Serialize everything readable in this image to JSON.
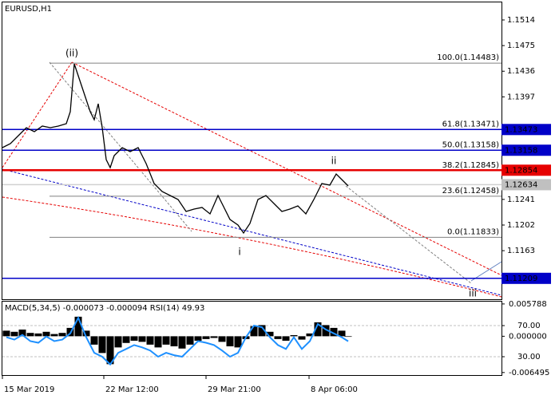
{
  "chart_data": [
    {
      "type": "line",
      "title": "EURUSD,H1",
      "color": "#000000",
      "x": [
        0,
        10,
        20,
        30,
        40,
        50,
        60,
        70,
        80,
        85,
        90,
        95,
        100,
        105,
        110,
        115,
        120,
        125,
        130,
        135,
        140,
        150,
        160,
        170,
        175,
        180,
        190,
        200,
        210,
        220,
        230,
        240,
        250,
        260,
        270,
        275,
        285,
        295,
        302,
        310,
        320,
        330,
        340,
        350,
        360,
        370,
        380,
        390,
        400,
        410,
        418,
        425,
        433
      ],
      "values": [
        1.13198,
        1.13258,
        1.1338,
        1.13501,
        1.1344,
        1.13525,
        1.13501,
        1.13525,
        1.13562,
        1.13744,
        1.14472,
        1.1429,
        1.14108,
        1.13926,
        1.13744,
        1.13623,
        1.13865,
        1.13501,
        1.13016,
        1.12894,
        1.13076,
        1.13198,
        1.13137,
        1.13198,
        1.13076,
        1.12955,
        1.12651,
        1.1253,
        1.12469,
        1.12409,
        1.12226,
        1.12263,
        1.12287,
        1.1219,
        1.12469,
        1.12348,
        1.12105,
        1.1202,
        1.11899,
        1.12044,
        1.12409,
        1.12469,
        1.12348,
        1.12226,
        1.12263,
        1.12311,
        1.1219,
        1.12409,
        1.12651,
        1.12627,
        1.12797,
        1.12712,
        1.12615
      ],
      "xlim": [
        0,
        625
      ],
      "xticks": [
        {
          "value": 0,
          "label": "15 Mar 2019"
        },
        {
          "value": 127,
          "label": "22 Mar 12:00"
        },
        {
          "value": 255,
          "label": "29 Mar 21:00"
        },
        {
          "value": 384,
          "label": "8 Apr 06:00"
        }
      ],
      "ylim": [
        1.10891,
        1.15407
      ],
      "yticks": [
        1.1514,
        1.1475,
        1.1436,
        1.1397,
        1.1241,
        1.1202,
        1.1163
      ],
      "levels": [
        1.13473,
        1.13158,
        1.12854,
        1.12634,
        1.11209
      ],
      "level_colors": [
        "#0000c8",
        "#0000c8",
        "#e60000",
        "#c0c0c0",
        "#0000c8"
      ],
      "fibo": [
        {
          "label": "100.0(1.14483)",
          "value": 1.14483
        },
        {
          "label": "61.8(1.13471)",
          "value": 1.13471
        },
        {
          "label": "50.0(1.13158)",
          "value": 1.13158
        },
        {
          "label": "38.2(1.12845)",
          "value": 1.12845
        },
        {
          "label": "23.6(1.12458)",
          "value": 1.12458
        },
        {
          "label": "0.0(1.11833)",
          "value": 1.11833
        }
      ],
      "annotations": [
        "(ii)",
        "ii",
        "i",
        "iii"
      ]
    },
    {
      "type": "bar",
      "title": "MACD(5,34,5) -0.000073 -0.000094 RSI(14) 49.93",
      "color": "#000000",
      "x": [
        5,
        15,
        25,
        35,
        45,
        55,
        65,
        75,
        85,
        95,
        105,
        115,
        125,
        135,
        145,
        155,
        165,
        175,
        185,
        195,
        205,
        215,
        225,
        235,
        245,
        255,
        265,
        275,
        285,
        295,
        305,
        315,
        325,
        335,
        345,
        355,
        365,
        375,
        385,
        395,
        405,
        415,
        425,
        433
      ],
      "values": [
        0.001,
        0.0008,
        0.0012,
        0.0006,
        0.0005,
        0.0008,
        0.0004,
        0.0006,
        0.0015,
        0.0035,
        0.001,
        -0.0015,
        -0.003,
        -0.005,
        -0.002,
        -0.0012,
        -0.0008,
        -0.001,
        -0.0015,
        -0.002,
        -0.0015,
        -0.0018,
        -0.0022,
        -0.0015,
        -0.0008,
        -0.0005,
        -0.0003,
        -0.001,
        -0.0018,
        -0.002,
        -0.0005,
        0.0018,
        0.002,
        0.0008,
        -0.0005,
        -0.0008,
        0.0002,
        -0.0006,
        0.0005,
        0.0025,
        0.002,
        0.0015,
        0.001,
        -0.0001
      ],
      "xlim": [
        0,
        625
      ],
      "ylim": [
        -0.00695,
        0.006201
      ],
      "yticks": [
        0.005788,
        {
          "value": 0,
          "label": "0.000000"
        },
        -0.006495
      ],
      "y2lim": [
        6.4,
        100.8
      ],
      "y2ticks": [
        {
          "value": 70,
          "label": "70.00"
        },
        {
          "value": 30,
          "label": "30.00"
        }
      ],
      "series": [
        {
          "color": "#1e90ff",
          "axis": "y2",
          "values": [
            55,
            52,
            58,
            50,
            48,
            56,
            50,
            52,
            60,
            80,
            55,
            35,
            30,
            20,
            35,
            40,
            45,
            42,
            38,
            30,
            35,
            32,
            30,
            40,
            50,
            48,
            45,
            38,
            30,
            35,
            55,
            70,
            68,
            55,
            45,
            40,
            55,
            40,
            50,
            72,
            65,
            60,
            55,
            49.93
          ]
        }
      ]
    }
  ]
}
